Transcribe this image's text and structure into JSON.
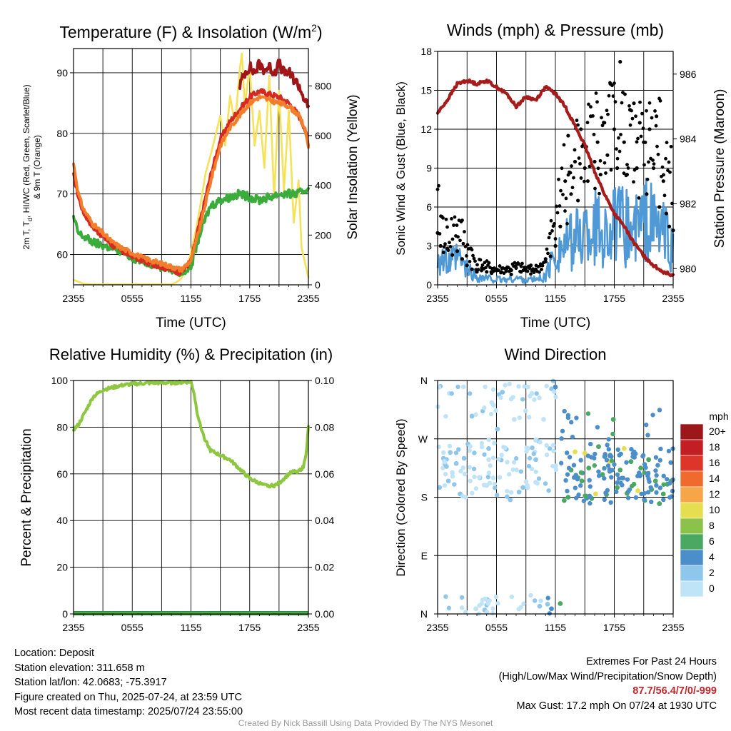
{
  "panels": {
    "temp": {
      "title": "Temperature (F) & Insolation (W/m",
      "title_sup": "2",
      "title_end": ")",
      "ylabel_left_lines": [
        "2m T, T",
        "d",
        ", HI/WC (Red, Green, Scarlet/Blue)",
        "& 9m T (Orange)"
      ],
      "ylabel_right": "Solar Insolation (Yellow)",
      "xlabel": "Time (UTC)"
    },
    "wind": {
      "title": "Winds (mph) & Pressure (mb)",
      "ylabel_left": "Sonic Wind & Gust (Blue, Black)",
      "ylabel_right": "Station Pressure (Maroon)",
      "xlabel": "Time (UTC)"
    },
    "rh": {
      "title": "Relative Humidity (%) & Precipitation (in)",
      "ylabel_left": "Percent & Precipitation"
    },
    "wdir": {
      "title": "Wind Direction",
      "ylabel_left": "Direction (Colored By Speed)",
      "colorbar_title": "mph"
    }
  },
  "footer": {
    "location": "Location: Deposit",
    "elevation": "Station elevation: 311.658 m",
    "latlon": "Station lat/lon: 42.0683; -75.3917",
    "created": "Figure created on Thu, 2025-07-24, at 23:59 UTC",
    "recent": "Most recent data timestamp: 2025/07/24 23:55:00",
    "extremes_title": "Extremes For Past 24 Hours",
    "extremes_sub": "(High/Low/Max Wind/Precipitation/Snow Depth)",
    "extremes_values": "87.7/56.4/7/0/-999",
    "max_gust": "Max Gust: 17.2 mph On 07/24 at 1930 UTC",
    "credit": "Created By Nick Bassill Using Data Provided By The NYS Mesonet"
  },
  "colors": {
    "temp_red": "#d42a22",
    "temp_green": "#3bab3b",
    "heat_index": "#a01518",
    "temp_9m": "#f47d2c",
    "solar": "#f6e15a",
    "wind": "#4f9ad6",
    "gust": "#000000",
    "pressure": "#a61c1c",
    "rh": "#8dc63f",
    "precip": "#2e8f3e"
  },
  "chart_data": [
    {
      "type": "line",
      "title": "Temperature (F) & Insolation (W/m2)",
      "xlabel": "Time (UTC)",
      "xticks": [
        "2355",
        "0555",
        "1155",
        "1755",
        "2355"
      ],
      "xlim_hours": [
        0,
        24
      ],
      "ylim_left": [
        55,
        94
      ],
      "yticks_left": [
        60,
        70,
        80,
        90
      ],
      "ylim_right": [
        0,
        950
      ],
      "yticks_right": [
        0,
        200,
        400,
        600,
        800
      ],
      "series": [
        {
          "name": "2m T",
          "color": "#d42a22",
          "axis": "left",
          "x": [
            0,
            0.5,
            1,
            2,
            3,
            4,
            5,
            6,
            7,
            8,
            9,
            10,
            11,
            12,
            13,
            14,
            15,
            16,
            17,
            18,
            19,
            20,
            21,
            22,
            23,
            23.6,
            24
          ],
          "y": [
            73,
            69.5,
            67,
            64.5,
            63,
            61.5,
            60.5,
            59.8,
            59,
            58.5,
            58,
            57.5,
            57,
            59,
            66,
            73,
            79,
            82,
            84,
            86,
            87,
            86.5,
            86,
            85,
            83,
            81,
            78
          ]
        },
        {
          "name": "Heat Index",
          "color": "#a01518",
          "axis": "left",
          "x": [
            17,
            17.5,
            18,
            18.5,
            19,
            19.5,
            20,
            20.5,
            21,
            21.5,
            22,
            22.5,
            23,
            23.5,
            24
          ],
          "y": [
            88,
            90,
            91,
            90,
            91.5,
            90.5,
            91,
            90,
            91.5,
            90,
            90,
            89,
            88,
            86,
            84
          ]
        },
        {
          "name": "9m T",
          "color": "#f47d2c",
          "axis": "left",
          "x": [
            0,
            0.5,
            1,
            2,
            3,
            4,
            5,
            6,
            7,
            8,
            9,
            10,
            11,
            12,
            13,
            14,
            15,
            16,
            17,
            18,
            19,
            20,
            21,
            22,
            23,
            23.6,
            24
          ],
          "y": [
            75,
            70,
            67.5,
            65,
            63.5,
            62,
            61,
            60.3,
            59.5,
            59,
            58.5,
            58,
            57.5,
            59,
            65,
            72,
            78,
            81,
            83,
            85,
            86,
            85.5,
            85,
            84.5,
            83,
            81,
            78
          ]
        },
        {
          "name": "2m Td",
          "color": "#3bab3b",
          "axis": "left",
          "x": [
            0,
            0.5,
            1,
            2,
            3,
            4,
            5,
            6,
            7,
            8,
            9,
            10,
            11,
            12,
            13,
            14,
            15,
            16,
            17,
            18,
            19,
            20,
            21,
            22,
            23,
            24
          ],
          "y": [
            66,
            63.5,
            63,
            62,
            61.5,
            61,
            60.5,
            59.5,
            59,
            58.5,
            58,
            57.5,
            57,
            58,
            64,
            68,
            69,
            69.5,
            70,
            69.5,
            69,
            69.5,
            70,
            70,
            70,
            71
          ]
        },
        {
          "name": "Solar Insolation",
          "color": "#f6e15a",
          "axis": "right",
          "x": [
            0,
            1,
            2,
            3,
            4,
            5,
            6,
            7,
            8,
            9,
            10,
            10.5,
            11,
            11.5,
            12,
            12.5,
            13,
            13.5,
            14,
            14.5,
            15,
            15.5,
            16,
            16.5,
            17,
            17.2,
            17.5,
            18,
            18.5,
            19,
            19.5,
            20,
            20.5,
            21,
            21.5,
            22,
            22.5,
            23,
            23.3,
            23.7,
            24
          ],
          "y": [
            20,
            5,
            2,
            2,
            2,
            2,
            2,
            2,
            2,
            2,
            2,
            10,
            25,
            60,
            130,
            220,
            330,
            450,
            520,
            600,
            680,
            560,
            760,
            640,
            870,
            930,
            720,
            880,
            560,
            700,
            470,
            840,
            350,
            780,
            380,
            700,
            250,
            420,
            150,
            80,
            30
          ]
        }
      ]
    },
    {
      "type": "line",
      "title": "Winds (mph) & Pressure (mb)",
      "xlabel": "Time (UTC)",
      "xticks": [
        "2355",
        "0555",
        "1155",
        "1755",
        "2355"
      ],
      "xlim_hours": [
        0,
        24
      ],
      "ylim_left": [
        0,
        18
      ],
      "yticks_left": [
        0,
        3,
        6,
        9,
        12,
        15,
        18
      ],
      "ylim_right": [
        979.5,
        986.7
      ],
      "yticks_right": [
        980,
        982,
        984,
        986
      ],
      "series": [
        {
          "name": "Station Pressure",
          "color": "#a61c1c",
          "axis": "right",
          "x": [
            0,
            1,
            2,
            3,
            4,
            5,
            6,
            7,
            8,
            9,
            10,
            11,
            11.5,
            12,
            13,
            14,
            15,
            16,
            17,
            18,
            19,
            20,
            21,
            22,
            23,
            24
          ],
          "y": [
            984.8,
            985.2,
            985.7,
            985.8,
            985.7,
            985.8,
            985.6,
            985.4,
            985.0,
            985.3,
            985.2,
            985.6,
            985.5,
            985.4,
            985.0,
            984.4,
            983.8,
            983.0,
            982.3,
            981.7,
            981.3,
            980.8,
            980.4,
            980.1,
            979.9,
            979.8
          ]
        },
        {
          "name": "Sonic Wind",
          "color": "#4f9ad6",
          "axis": "left",
          "x": [
            0,
            1,
            2,
            3,
            4,
            5,
            6,
            7,
            8,
            9,
            10,
            11,
            12,
            13,
            14,
            15,
            16,
            17,
            18,
            19,
            20,
            21,
            22,
            23,
            24
          ],
          "y": [
            2.5,
            1.5,
            2.0,
            1.2,
            0.6,
            0.5,
            0.4,
            0.4,
            0.5,
            0.4,
            0.4,
            0.6,
            2.5,
            3.0,
            3.5,
            4.0,
            4.5,
            4.0,
            4.5,
            4.5,
            4.0,
            5.0,
            4.5,
            4.0,
            2.5
          ]
        },
        {
          "name": "Gust",
          "color": "#000000",
          "axis": "left",
          "kind": "scatter",
          "x": [
            0,
            0.3,
            0.6,
            1,
            1.5,
            2,
            2.5,
            3,
            3.5,
            4,
            4.5,
            5,
            5.5,
            6,
            6.5,
            7,
            7.5,
            8,
            8.5,
            9,
            9.5,
            10,
            10.5,
            11,
            11.5,
            12,
            12.5,
            13,
            13.3,
            13.6,
            14,
            14.3,
            14.6,
            15,
            15.3,
            15.6,
            16,
            16.3,
            16.6,
            17,
            17.3,
            17.6,
            18,
            18.3,
            18.6,
            19,
            19.3,
            19.6,
            20,
            20.3,
            20.6,
            21,
            21.3,
            21.6,
            22,
            22.3,
            22.6,
            23,
            23.3,
            23.6,
            24
          ],
          "y": [
            4,
            3,
            2.5,
            2.8,
            2.3,
            2.6,
            2,
            1.5,
            1.2,
            1,
            1.3,
            1,
            0.9,
            1.1,
            1,
            1.2,
            0.8,
            1.3,
            1,
            1.1,
            1.5,
            1.2,
            1.6,
            2,
            2.2,
            3,
            4.5,
            8,
            11.5,
            7,
            9.5,
            6.5,
            12,
            9,
            8,
            13,
            9.5,
            11,
            8.5,
            12.5,
            10,
            15.5,
            12,
            9,
            17.2,
            11,
            8.5,
            13.5,
            14,
            9,
            12.5,
            11,
            7,
            12,
            9,
            13,
            6,
            8,
            5.5,
            4.5,
            4.2
          ]
        }
      ]
    },
    {
      "type": "line",
      "title": "Relative Humidity (%) & Precipitation (in)",
      "xticks": [
        "2355",
        "0555",
        "1155",
        "1755",
        "2355"
      ],
      "xlim_hours": [
        0,
        24
      ],
      "ylim_left": [
        0,
        100
      ],
      "yticks_left": [
        0,
        20,
        40,
        60,
        80,
        100
      ],
      "ylim_right": [
        0,
        0.1
      ],
      "yticks_right": [
        "0.00",
        "0.02",
        "0.04",
        "0.06",
        "0.08",
        "0.10"
      ],
      "series": [
        {
          "name": "Relative Humidity",
          "color": "#8dc63f",
          "axis": "left",
          "x": [
            0,
            0.5,
            1,
            1.5,
            2,
            3,
            4,
            5,
            6,
            7,
            8,
            9,
            10,
            11,
            12,
            12.3,
            12.6,
            13,
            13.5,
            14,
            14.5,
            15,
            16,
            17,
            18,
            18.5,
            19,
            19.5,
            20,
            20.5,
            21,
            21.5,
            22,
            22.5,
            23,
            23.5,
            23.8,
            24
          ],
          "y": [
            79,
            81,
            85,
            89,
            93,
            96,
            97,
            98,
            98.5,
            98.7,
            99,
            99,
            99,
            99.2,
            99.5,
            95,
            87,
            80,
            74,
            70,
            69,
            68,
            66,
            62,
            58,
            57,
            56,
            55,
            55,
            55,
            56,
            58,
            60,
            61,
            61,
            63,
            70,
            80
          ]
        },
        {
          "name": "Precipitation",
          "color": "#2e8f3e",
          "axis": "right",
          "x": [
            0,
            24
          ],
          "y": [
            0,
            0
          ]
        }
      ]
    },
    {
      "type": "scatter",
      "title": "Wind Direction",
      "xticks": [
        "2355",
        "0555",
        "1155",
        "1755",
        "2355"
      ],
      "xlim_hours": [
        0,
        24
      ],
      "ylim_deg": [
        0,
        360
      ],
      "yticks": [
        "N",
        "E",
        "S",
        "W",
        "N"
      ],
      "colorbar": {
        "title": "mph",
        "labels": [
          "0",
          "2",
          "4",
          "6",
          "8",
          "10",
          "12",
          "14",
          "16",
          "18",
          "20+"
        ],
        "colors": [
          "#bfe3f7",
          "#8fc7ec",
          "#4b8ec9",
          "#4aa862",
          "#8bc24a",
          "#e5df50",
          "#f6a647",
          "#ef6a2c",
          "#dd3628",
          "#c21f24",
          "#9c171a"
        ]
      },
      "series": [
        {
          "name": "Wind Direction",
          "axis": "left",
          "x": [
            0.2,
            0.6,
            1.1,
            1.5,
            1.9,
            2.3,
            2.7,
            3.1,
            3.5,
            3.9,
            4.3,
            4.8,
            5.2,
            5.7,
            6.1,
            6.6,
            7.0,
            7.4,
            7.8,
            8.3,
            8.7,
            9.2,
            9.6,
            10.0,
            10.4,
            10.8,
            11.2,
            11.6,
            12.0,
            12.5,
            12.9,
            13.3,
            13.6,
            14.0,
            14.3,
            14.7,
            15.0,
            15.4,
            15.7,
            16.1,
            16.4,
            16.8,
            17.2,
            17.5,
            17.9,
            18.3,
            18.6,
            19.0,
            19.3,
            19.7,
            20.0,
            20.4,
            20.7,
            21.1,
            21.5,
            21.8,
            22.2,
            22.6,
            23.0,
            23.4,
            23.8
          ],
          "y": [
            195,
            240,
            205,
            218,
            232,
            185,
            240,
            262,
            305,
            8,
            210,
            6,
            255,
            322,
            285,
            342,
            254,
            176,
            300,
            188,
            195,
            350,
            340,
            238,
            12,
            300,
            15,
            8,
            350,
            16,
            175,
            180,
            222,
            250,
            210,
            205,
            248,
            225,
            178,
            185,
            258,
            215,
            184,
            235,
            300,
            195,
            222,
            255,
            186,
            235,
            200,
            190,
            225,
            175,
            238,
            192,
            205,
            170,
            185,
            200,
            205
          ],
          "speed": [
            1,
            1,
            1,
            0,
            1,
            1,
            1,
            1,
            1,
            0,
            1,
            1,
            1,
            0,
            1,
            1,
            1,
            1,
            0,
            1,
            1,
            0,
            0,
            1,
            1,
            0,
            1,
            2,
            2,
            3,
            3,
            3,
            3,
            5,
            3,
            3,
            5,
            3,
            3,
            5,
            3,
            3,
            3,
            5,
            3,
            3,
            3,
            5,
            3,
            3,
            3,
            5,
            3,
            3,
            3,
            3,
            3,
            3,
            3,
            3,
            3
          ]
        }
      ]
    }
  ]
}
